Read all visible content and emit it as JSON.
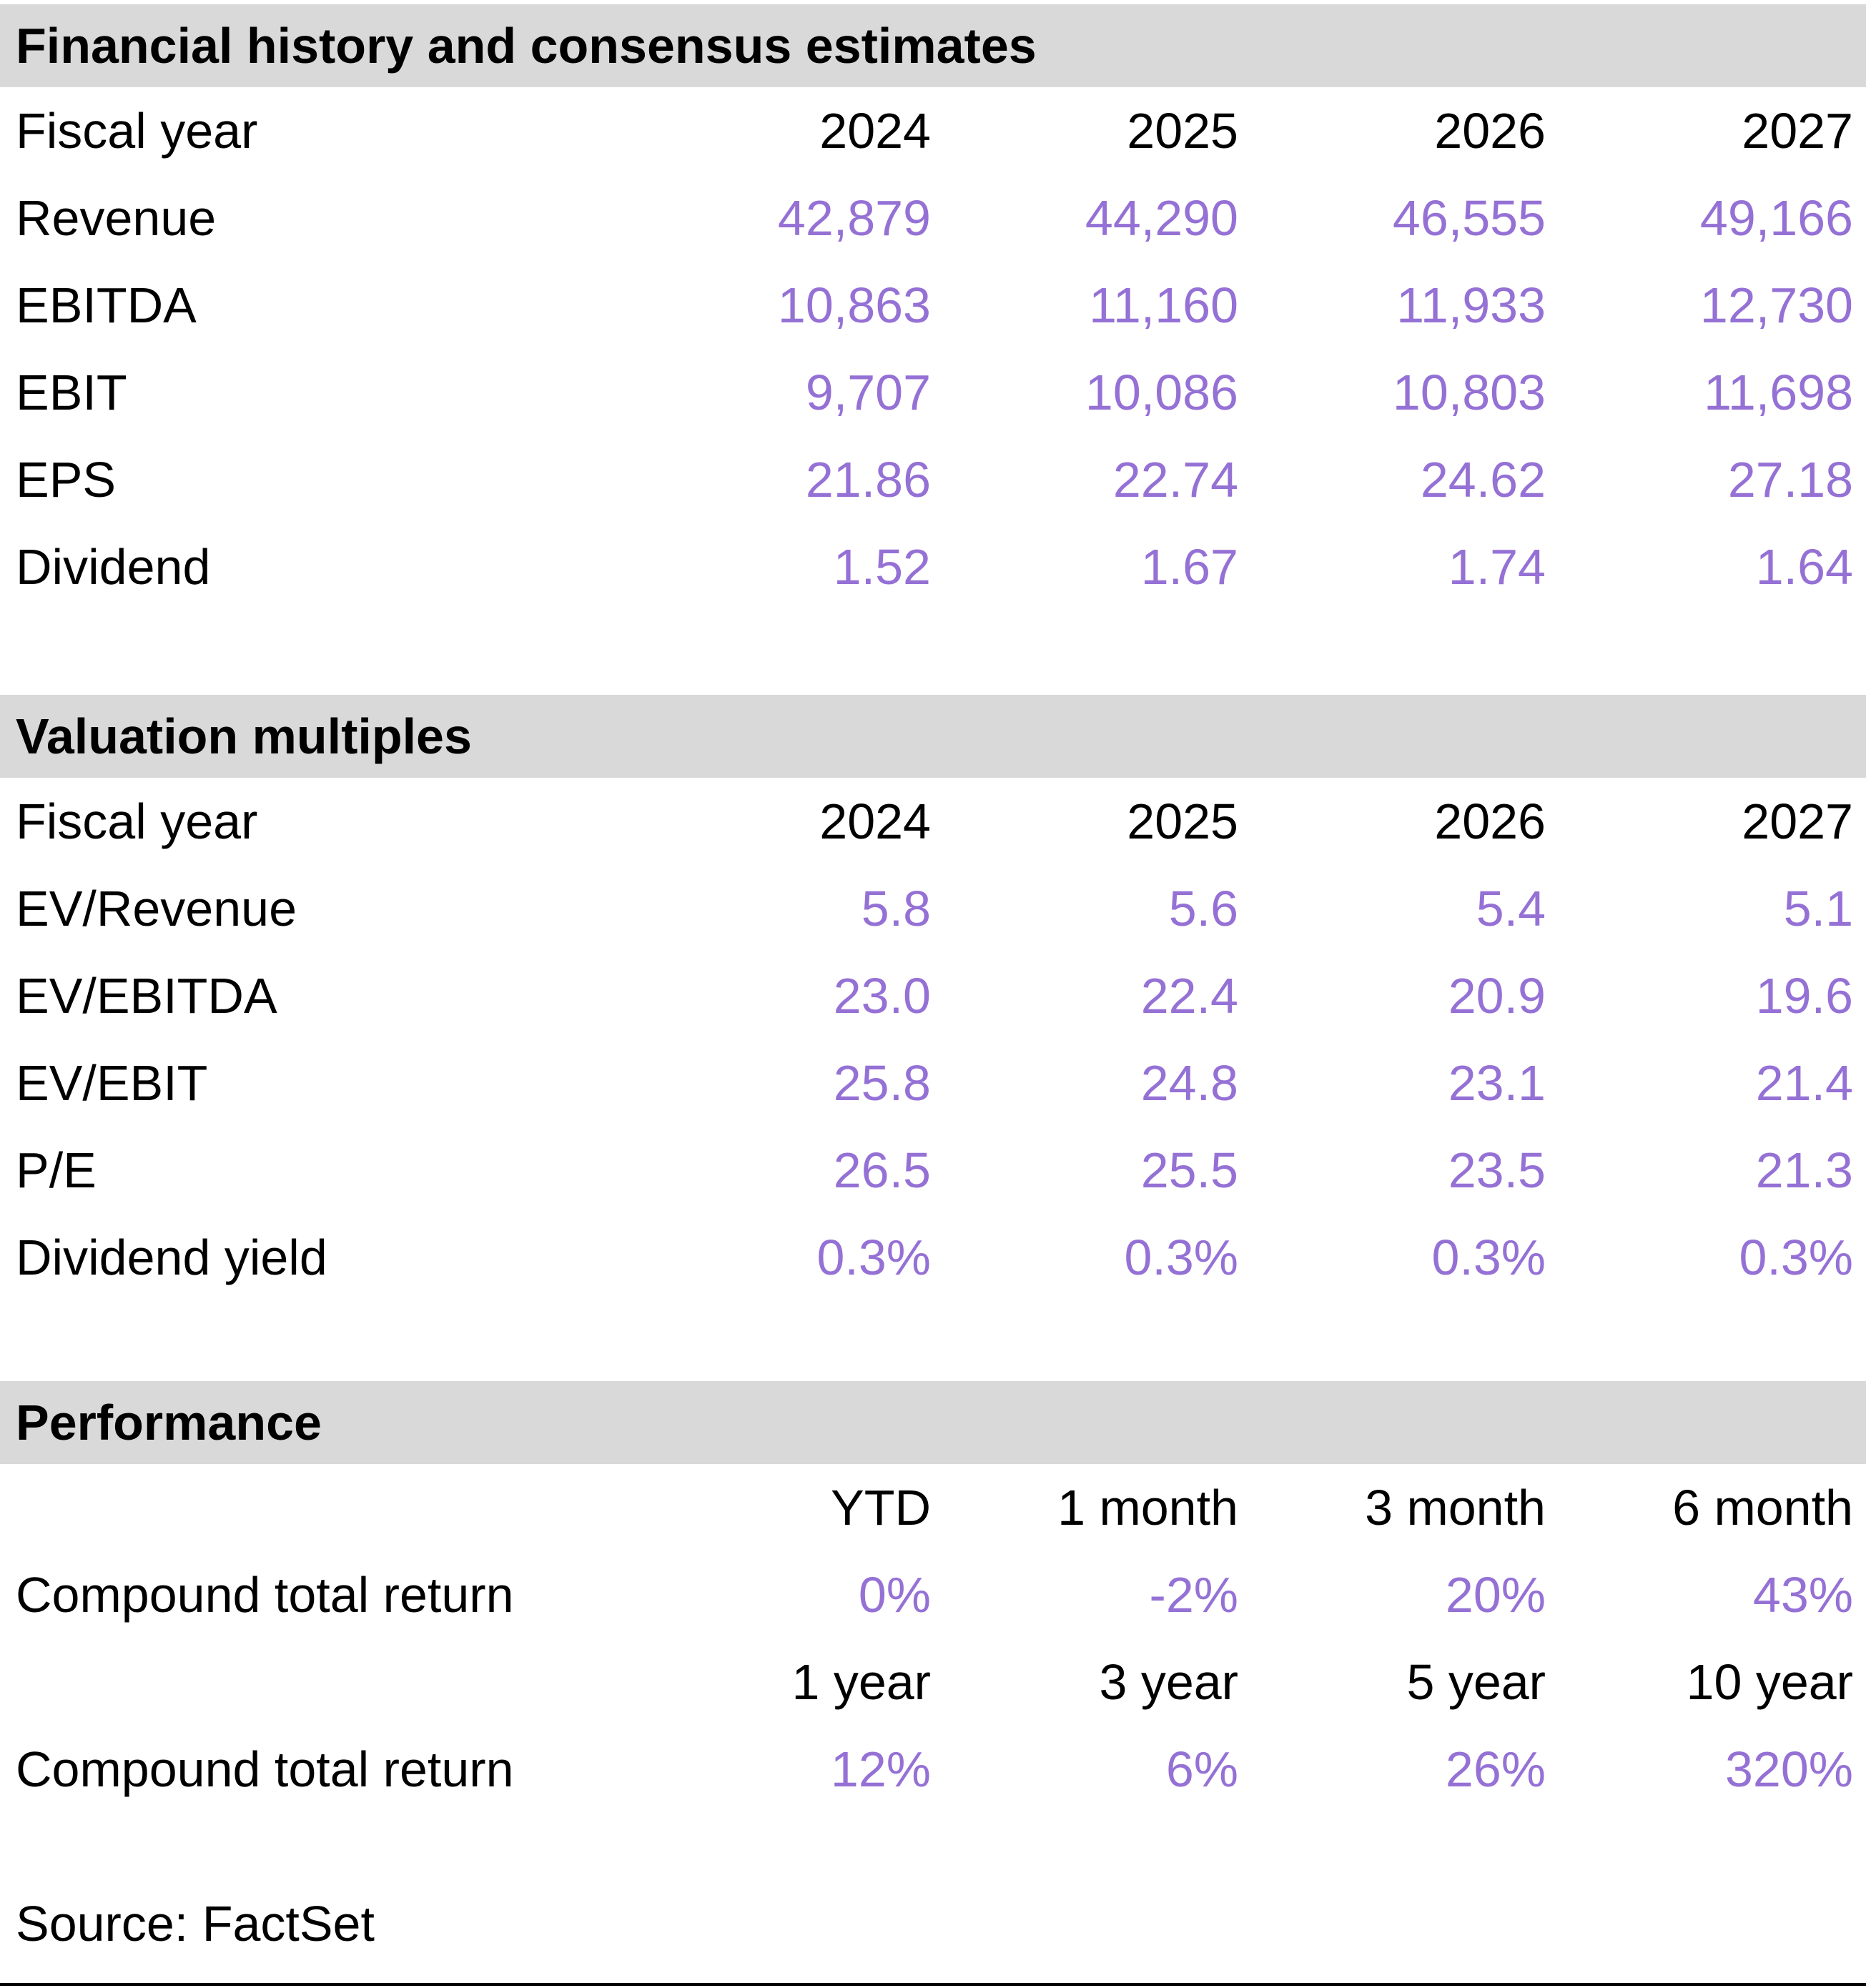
{
  "colors": {
    "accent_purple": "#9571D5",
    "section_header_bg": "#D9D9D9",
    "text": "#000000"
  },
  "financial_history": {
    "title": "Financial history and consensus estimates",
    "fiscal_year_label": "Fiscal year",
    "years": [
      "2024",
      "2025",
      "2026",
      "2027"
    ],
    "rows": [
      {
        "label": "Revenue",
        "values": [
          "42,879",
          "44,290",
          "46,555",
          "49,166"
        ]
      },
      {
        "label": "EBITDA",
        "values": [
          "10,863",
          "11,160",
          "11,933",
          "12,730"
        ]
      },
      {
        "label": "EBIT",
        "values": [
          "9,707",
          "10,086",
          "10,803",
          "11,698"
        ]
      },
      {
        "label": "EPS",
        "values": [
          "21.86",
          "22.74",
          "24.62",
          "27.18"
        ]
      },
      {
        "label": "Dividend",
        "values": [
          "1.52",
          "1.67",
          "1.74",
          "1.64"
        ]
      }
    ]
  },
  "valuation_multiples": {
    "title": "Valuation multiples",
    "fiscal_year_label": "Fiscal year",
    "years": [
      "2024",
      "2025",
      "2026",
      "2027"
    ],
    "rows": [
      {
        "label": "EV/Revenue",
        "values": [
          "5.8",
          "5.6",
          "5.4",
          "5.1"
        ]
      },
      {
        "label": "EV/EBITDA",
        "values": [
          "23.0",
          "22.4",
          "20.9",
          "19.6"
        ]
      },
      {
        "label": "EV/EBIT",
        "values": [
          "25.8",
          "24.8",
          "23.1",
          "21.4"
        ]
      },
      {
        "label": "P/E",
        "values": [
          "26.5",
          "25.5",
          "23.5",
          "21.3"
        ]
      },
      {
        "label": "Dividend yield",
        "values": [
          "0.3%",
          "0.3%",
          "0.3%",
          "0.3%"
        ]
      }
    ]
  },
  "performance": {
    "title": "Performance",
    "period_blocks": [
      {
        "periods": [
          "YTD",
          "1 month",
          "3 month",
          "6 month"
        ],
        "row_label": "Compound total return",
        "values": [
          "0%",
          "-2%",
          "20%",
          "43%"
        ]
      },
      {
        "periods": [
          "1 year",
          "3 year",
          "5 year",
          "10 year"
        ],
        "row_label": "Compound total return",
        "values": [
          "12%",
          "6%",
          "26%",
          "320%"
        ]
      }
    ]
  },
  "footer": {
    "source": "Source: FactSet"
  }
}
